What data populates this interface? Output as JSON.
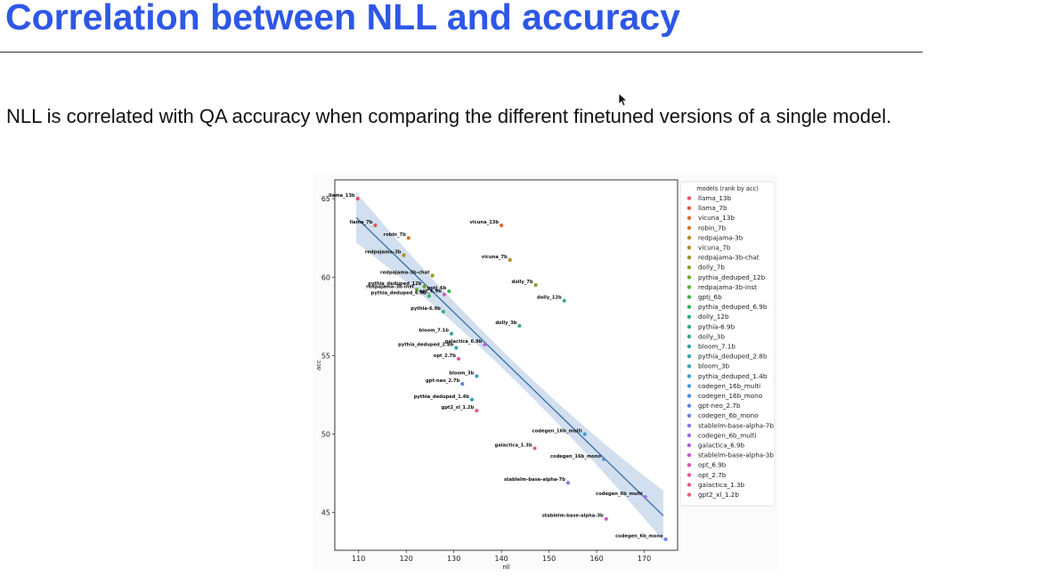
{
  "slide": {
    "title": "Correlation between NLL and accuracy",
    "body": "NLL is correlated with QA accuracy when comparing the different finetuned versions of a single model."
  },
  "chart_data": {
    "type": "scatter",
    "title": "",
    "xlabel": "nll",
    "ylabel": "acc",
    "xlim": [
      105,
      177
    ],
    "ylim": [
      42.6,
      66.2
    ],
    "xticks": [
      110,
      120,
      130,
      140,
      150,
      160,
      170
    ],
    "yticks": [
      45,
      50,
      55,
      60,
      65
    ],
    "grid": false,
    "legend_title": "models (rank by acc)",
    "legend_position": "right-outside",
    "regression": {
      "x": [
        109.5,
        174.0
      ],
      "y": [
        63.8,
        44.8
      ],
      "color": "#3a6ea5",
      "band_color": "#c9d9ec"
    },
    "points": [
      {
        "name": "llama_13b",
        "x": 109.8,
        "y": 65.0,
        "color": "#e8536b"
      },
      {
        "name": "llama_7b",
        "x": 113.5,
        "y": 63.3,
        "color": "#e25a4a"
      },
      {
        "name": "vicuna_13b",
        "x": 140.0,
        "y": 63.3,
        "color": "#dd6a33"
      },
      {
        "name": "robin_7b",
        "x": 120.5,
        "y": 62.5,
        "color": "#cf7a2c"
      },
      {
        "name": "redpajama-3b",
        "x": 119.5,
        "y": 61.4,
        "color": "#bd8528"
      },
      {
        "name": "vicuna_7b",
        "x": 141.8,
        "y": 61.1,
        "color": "#a89029"
      },
      {
        "name": "redpajama-3b-chat",
        "x": 125.5,
        "y": 60.1,
        "color": "#999929"
      },
      {
        "name": "dolly_7b",
        "x": 147.2,
        "y": 59.5,
        "color": "#89a12b"
      },
      {
        "name": "pythia_deduped_12b",
        "x": 123.8,
        "y": 59.4,
        "color": "#72a82f"
      },
      {
        "name": "redpajama-3b-inst",
        "x": 122.2,
        "y": 59.2,
        "color": "#5aad3b"
      },
      {
        "name": "gptj_6b",
        "x": 129.0,
        "y": 59.1,
        "color": "#42b04f"
      },
      {
        "name": "pythia_deduped_6.9b",
        "x": 124.8,
        "y": 58.8,
        "color": "#38b062"
      },
      {
        "name": "dolly_12b",
        "x": 153.2,
        "y": 58.5,
        "color": "#35ae76"
      },
      {
        "name": "pythia-6.9b",
        "x": 127.8,
        "y": 57.8,
        "color": "#35ab86"
      },
      {
        "name": "dolly_3b",
        "x": 143.8,
        "y": 56.9,
        "color": "#36a894"
      },
      {
        "name": "bloom_7.1b",
        "x": 129.5,
        "y": 56.4,
        "color": "#37a59f"
      },
      {
        "name": "pythia_deduped_2.8b",
        "x": 130.5,
        "y": 55.5,
        "color": "#39a3aa"
      },
      {
        "name": "bloom_3b",
        "x": 134.8,
        "y": 53.7,
        "color": "#3ba1b6"
      },
      {
        "name": "pythia_deduped_1.4b",
        "x": 133.8,
        "y": 52.2,
        "color": "#3e9fc4"
      },
      {
        "name": "codegen_16b_multi",
        "x": 157.5,
        "y": 50.0,
        "color": "#4499d2"
      },
      {
        "name": "codegen_16b_mono",
        "x": 161.5,
        "y": 48.4,
        "color": "#4f90dd"
      },
      {
        "name": "gpt-neo_2.7b",
        "x": 131.8,
        "y": 53.2,
        "color": "#5c86e2"
      },
      {
        "name": "codegen_6b_mono",
        "x": 174.5,
        "y": 43.3,
        "color": "#6f7fe6"
      },
      {
        "name": "stablelm-base-alpha-7b",
        "x": 154.0,
        "y": 46.9,
        "color": "#8378e4"
      },
      {
        "name": "codegen_6b_multi",
        "x": 170.2,
        "y": 46.0,
        "color": "#9a70dd"
      },
      {
        "name": "galactica_6.9b",
        "x": 136.5,
        "y": 55.7,
        "color": "#b067d4"
      },
      {
        "name": "stablelm-base-alpha-3b",
        "x": 162.0,
        "y": 44.6,
        "color": "#c45fc5"
      },
      {
        "name": "opt_6.9b",
        "x": 128.0,
        "y": 58.9,
        "color": "#d35bb3"
      },
      {
        "name": "opt_2.7b",
        "x": 131.0,
        "y": 54.8,
        "color": "#dd5b9f"
      },
      {
        "name": "galactica_1.3b",
        "x": 147.0,
        "y": 49.1,
        "color": "#e45c8a"
      },
      {
        "name": "gpt2_xl_1.2b",
        "x": 134.8,
        "y": 51.5,
        "color": "#e95f76"
      }
    ]
  }
}
